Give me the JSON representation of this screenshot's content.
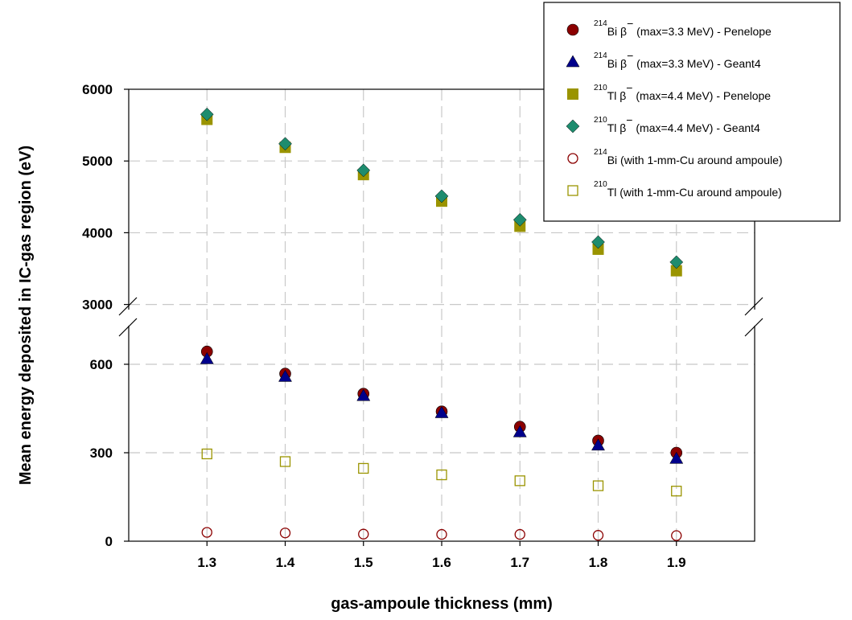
{
  "chart_data": {
    "type": "scatter",
    "xlabel": "gas-ampoule thickness (mm)",
    "ylabel": "Mean energy deposited in IC-gas region (eV)",
    "x": [
      1.3,
      1.4,
      1.5,
      1.6,
      1.7,
      1.8,
      1.9
    ],
    "x_ticks": [
      "1.3",
      "1.4",
      "1.5",
      "1.6",
      "1.7",
      "1.8",
      "1.9"
    ],
    "xlim": [
      1.2,
      2.0
    ],
    "y_axis_break": true,
    "y_lower_range": [
      0,
      750
    ],
    "y_upper_range": [
      2850,
      6000
    ],
    "y_ticks_lower": [
      "0",
      "300",
      "600"
    ],
    "y_ticks_upper": [
      "3000",
      "4000",
      "5000",
      "6000"
    ],
    "grid": true,
    "legend_position": "top-right",
    "series": [
      {
        "legend_main": "Bi β",
        "legend_iso": "214",
        "legend_sup": "−",
        "legend_tail": "(max=3.3 MeV) - Penelope",
        "marker": "circle-filled",
        "color": "#8b0000",
        "values": [
          643,
          568,
          500,
          440,
          388,
          341,
          300
        ]
      },
      {
        "legend_main": "Bi β",
        "legend_iso": "214",
        "legend_sup": "−",
        "legend_tail": "(max=3.3 MeV) - Geant4",
        "marker": "triangle-filled",
        "color": "#00008b",
        "values": [
          618,
          558,
          493,
          435,
          370,
          325,
          280
        ]
      },
      {
        "legend_main": "Tl β",
        "legend_iso": "210",
        "legend_sup": "−",
        "legend_tail": "(max=4.4 MeV) - Penelope",
        "marker": "square-filled",
        "color": "#9a9400",
        "values": [
          5580,
          5190,
          4810,
          4440,
          4090,
          3770,
          3470
        ]
      },
      {
        "legend_main": "Tl β",
        "legend_iso": "210",
        "legend_sup": "−",
        "legend_tail": "(max=4.4 MeV) - Geant4",
        "marker": "diamond-filled",
        "color": "#1e8c6e",
        "values": [
          5650,
          5240,
          4870,
          4510,
          4180,
          3870,
          3590
        ]
      },
      {
        "legend_main": "Bi",
        "legend_iso": "214",
        "legend_sup": "",
        "legend_tail": "(with 1-mm-Cu around ampoule)",
        "marker": "circle-open",
        "color": "#8b0000",
        "values": [
          30,
          28,
          24,
          23,
          23,
          20,
          19
        ]
      },
      {
        "legend_main": "Tl",
        "legend_iso": "210",
        "legend_sup": "",
        "legend_tail": "(with 1-mm-Cu around ampoule)",
        "marker": "square-open",
        "color": "#9a9400",
        "values": [
          296,
          270,
          247,
          225,
          205,
          188,
          170
        ]
      }
    ]
  }
}
